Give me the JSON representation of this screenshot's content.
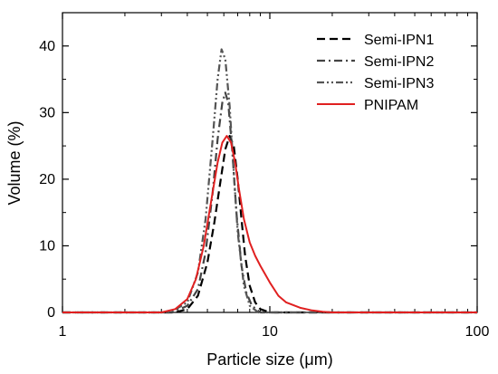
{
  "chart_data": {
    "type": "line",
    "xlabel": "Particle size (μm)",
    "ylabel": "Volume (%)",
    "x_scale": "log",
    "xlim": [
      1,
      100
    ],
    "ylim": [
      0,
      45
    ],
    "x_ticks": [
      1,
      10,
      100
    ],
    "y_ticks": [
      0,
      10,
      20,
      30,
      40
    ],
    "grid": false,
    "legend_position": "top-right",
    "series": [
      {
        "name": "Semi-IPN1",
        "color": "#000000",
        "line_style": "dash",
        "x": [
          3.5,
          4.0,
          4.5,
          5.0,
          5.4,
          5.8,
          6.1,
          6.4,
          6.7,
          7.0,
          7.3,
          7.6,
          8.0,
          8.5,
          9.0,
          10.0,
          11.0
        ],
        "y": [
          0,
          0.5,
          2.5,
          7.5,
          13.5,
          20,
          24.5,
          26.5,
          25,
          20,
          14,
          8.5,
          4,
          1.5,
          0.5,
          0,
          0
        ]
      },
      {
        "name": "Semi-IPN2",
        "color": "#444444",
        "line_style": "dash-dot",
        "x": [
          3.4,
          4.0,
          4.5,
          4.9,
          5.3,
          5.6,
          5.9,
          6.1,
          6.3,
          6.6,
          6.9,
          7.3,
          7.7,
          8.2,
          9.0,
          10.0
        ],
        "y": [
          0,
          1,
          3.5,
          9,
          18,
          26,
          31.5,
          33,
          31.5,
          24,
          15,
          7,
          3,
          1,
          0,
          0
        ]
      },
      {
        "name": "Semi-IPN3",
        "color": "#555555",
        "line_style": "dash-dot-dot",
        "x": [
          3.3,
          4.0,
          4.5,
          4.9,
          5.3,
          5.6,
          5.85,
          6.1,
          6.4,
          6.7,
          7.0,
          7.5,
          8.0,
          8.8,
          10.0
        ],
        "y": [
          0,
          1.5,
          6,
          14,
          26,
          35,
          39.5,
          38,
          31,
          21,
          12,
          4,
          1,
          0,
          0
        ]
      },
      {
        "name": "PNIPAM",
        "color": "#e02020",
        "line_style": "solid",
        "x": [
          3.0,
          3.5,
          4.0,
          4.4,
          4.8,
          5.2,
          5.6,
          5.9,
          6.2,
          6.5,
          6.8,
          7.1,
          7.5,
          8.0,
          8.5,
          9.0,
          10.0,
          11.0,
          12.0,
          14.0,
          16.0,
          18.0,
          20.0
        ],
        "y": [
          0,
          0.5,
          2,
          5,
          10,
          16.5,
          22.5,
          25.5,
          26.5,
          25.5,
          22.5,
          18.5,
          14,
          10.5,
          8.5,
          7,
          4.5,
          2.5,
          1.5,
          0.7,
          0.3,
          0.1,
          0
        ]
      }
    ]
  }
}
